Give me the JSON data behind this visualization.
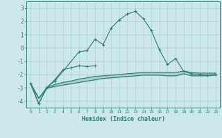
{
  "x": [
    0,
    1,
    2,
    3,
    4,
    5,
    6,
    7,
    8,
    9,
    10,
    11,
    12,
    13,
    14,
    15,
    16,
    17,
    18,
    19,
    20,
    21,
    22,
    23
  ],
  "line_main": [
    -2.7,
    -4.2,
    -3.0,
    -2.5,
    null,
    null,
    -0.3,
    -0.2,
    0.65,
    0.25,
    1.5,
    2.1,
    2.55,
    2.75,
    2.2,
    1.3,
    -0.15,
    -1.25,
    -0.8,
    -1.75,
    -1.95,
    -2.0,
    -2.05,
    -2.0
  ],
  "line_short": [
    -2.7,
    -4.2,
    -3.0,
    -2.4,
    -1.65,
    -1.5,
    -1.35,
    -1.4,
    -1.35,
    null,
    null,
    null,
    null,
    null,
    null,
    null,
    null,
    null,
    null,
    null,
    null,
    null,
    null,
    null
  ],
  "line_upper": [
    -2.7,
    -3.8,
    -3.0,
    -2.75,
    -2.6,
    -2.5,
    -2.35,
    -2.25,
    -2.15,
    -2.1,
    -2.05,
    -2.0,
    -1.95,
    -1.9,
    -1.85,
    -1.85,
    -1.85,
    -1.85,
    -1.85,
    -1.75,
    -1.85,
    -1.9,
    -1.9,
    -1.9
  ],
  "line_lower": [
    -2.7,
    -3.8,
    -3.05,
    -2.9,
    -2.8,
    -2.7,
    -2.6,
    -2.5,
    -2.4,
    -2.3,
    -2.25,
    -2.2,
    -2.15,
    -2.1,
    -2.05,
    -2.05,
    -2.05,
    -2.1,
    -2.1,
    -1.95,
    -2.1,
    -2.1,
    -2.1,
    -2.05
  ],
  "bg_color": "#cce8ea",
  "grid_color": "#aacfd2",
  "line_color": "#2a7a6e",
  "xlabel": "Humidex (Indice chaleur)",
  "ylim": [
    -4.5,
    3.5
  ],
  "yticks": [
    -4,
    -3,
    -2,
    -1,
    0,
    1,
    2,
    3
  ],
  "xlim": [
    -0.5,
    23.5
  ]
}
